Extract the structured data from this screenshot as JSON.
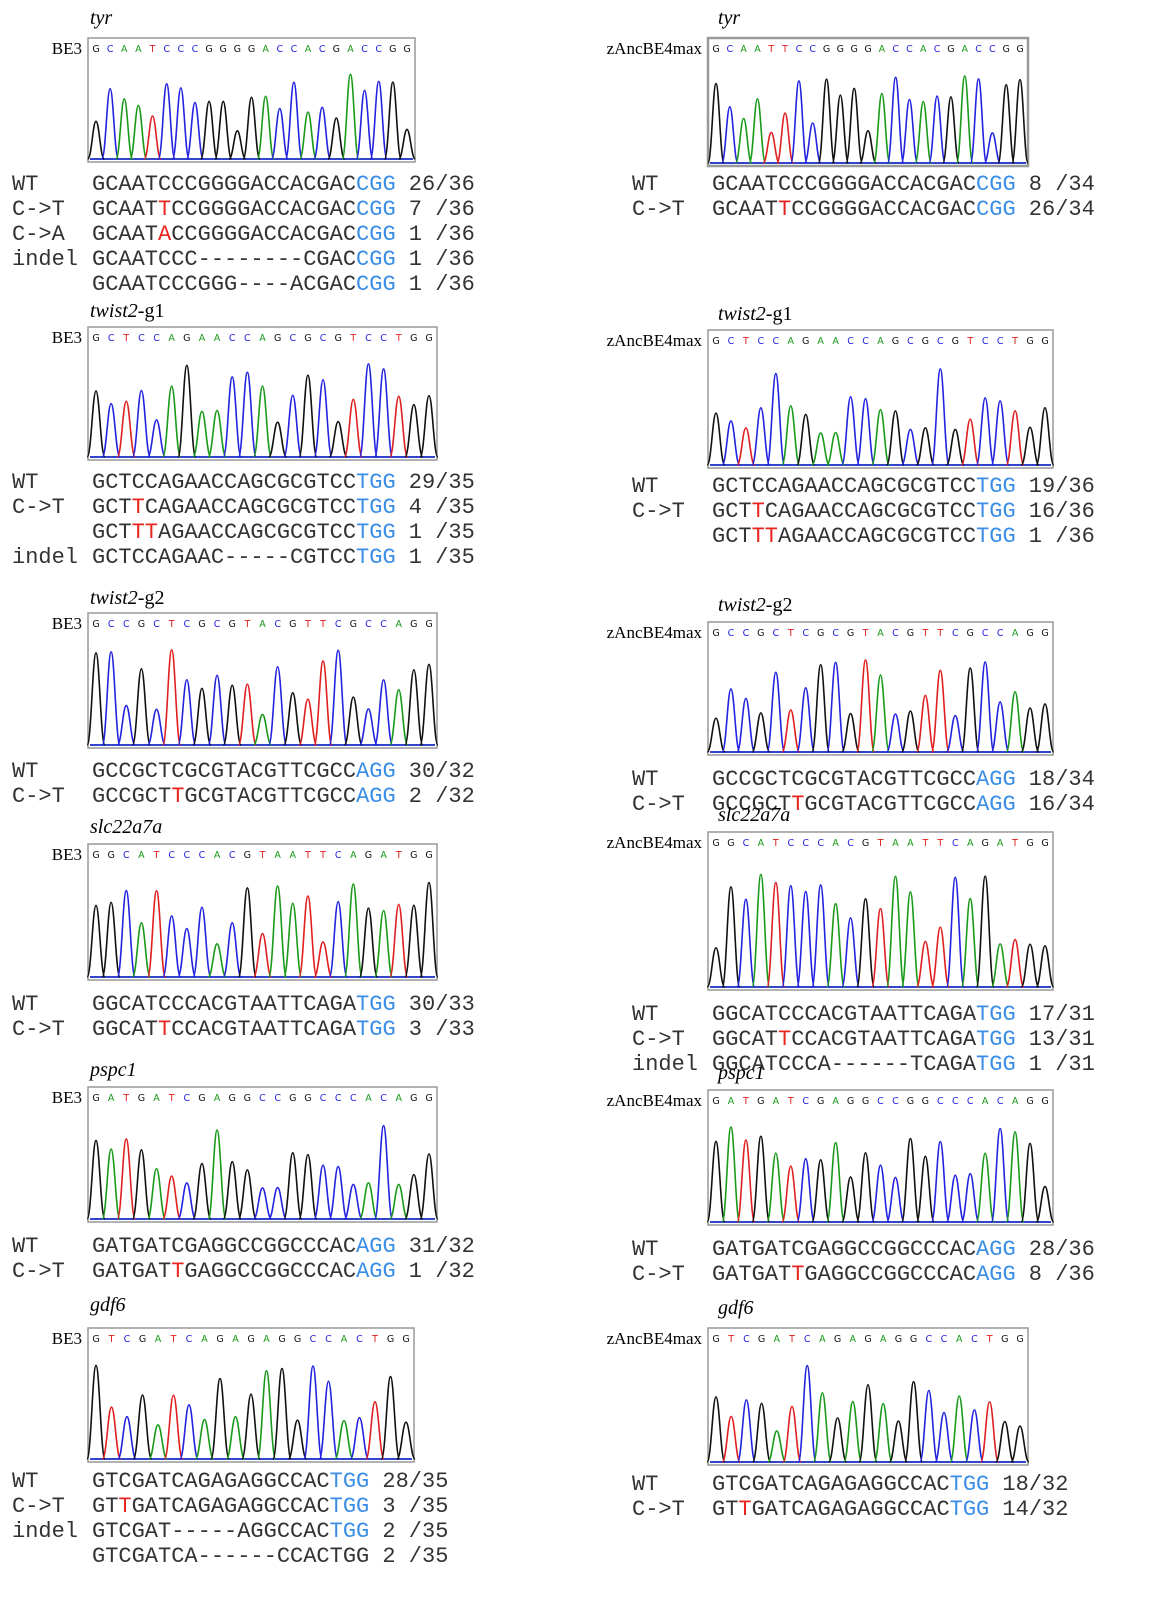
{
  "columns": [
    {
      "panels": [
        {
          "title": {
            "italic": "tyr"
          },
          "enzyme": "BE3",
          "trace": "GCAATCCCGGGGACCACGACCGG",
          "alleles": [
            {
              "label": "WT",
              "seq": [
                {
                  "text": "GCAATCCCGGGGACCACGAC"
                },
                {
                  "text": "CGG",
                  "color": "#3a8ee6"
                }
              ],
              "count": "26/36"
            },
            {
              "label": "C->T",
              "seq": [
                {
                  "text": "GCAAT"
                },
                {
                  "text": "T",
                  "color": "#e8251f"
                },
                {
                  "text": "CCGGGGACCACGAC"
                },
                {
                  "text": "CGG",
                  "color": "#3a8ee6"
                }
              ],
              "count": "7 /36"
            },
            {
              "label": "C->A",
              "seq": [
                {
                  "text": "GCAAT"
                },
                {
                  "text": "A",
                  "color": "#e8251f"
                },
                {
                  "text": "CCGGGGACCACGAC"
                },
                {
                  "text": "CGG",
                  "color": "#3a8ee6"
                }
              ],
              "count": "1 /36"
            },
            {
              "label": "indel",
              "seq": [
                {
                  "text": "GCAATCCC--------CGAC"
                },
                {
                  "text": "CGG",
                  "color": "#3a8ee6"
                }
              ],
              "count": "1 /36"
            },
            {
              "seq": [
                {
                  "text": "GCAATCCCGGG----ACGAC"
                },
                {
                  "text": "CGG",
                  "color": "#3a8ee6"
                }
              ],
              "count": "1 /36"
            }
          ]
        },
        {
          "title": {
            "italic": "twist2",
            "plain": "-g1"
          },
          "enzyme": "BE3",
          "trace": "GCTCCAGAACCAGCGCGTCCTGG",
          "alleles": [
            {
              "label": "WT",
              "seq": [
                {
                  "text": "GCTCCAGAACCAGCGCGTCC"
                },
                {
                  "text": "TGG",
                  "color": "#3a8ee6"
                }
              ],
              "count": "29/35"
            },
            {
              "label": "C->T",
              "seq": [
                {
                  "text": "GCT"
                },
                {
                  "text": "T",
                  "color": "#e8251f"
                },
                {
                  "text": "CAGAACCAGCGCGTCC"
                },
                {
                  "text": "TGG",
                  "color": "#3a8ee6"
                }
              ],
              "count": "4 /35"
            },
            {
              "seq": [
                {
                  "text": "GCT"
                },
                {
                  "text": "TT",
                  "color": "#e8251f"
                },
                {
                  "text": "AGAACCAGCGCGTCC"
                },
                {
                  "text": "TGG",
                  "color": "#3a8ee6"
                }
              ],
              "count": "1 /35"
            },
            {
              "label": "indel",
              "seq": [
                {
                  "text": "GCTCCAGAAC-----CGTCC"
                },
                {
                  "text": "TGG",
                  "color": "#3a8ee6"
                }
              ],
              "count": "1 /35"
            }
          ]
        },
        {
          "title": {
            "italic": "twist2",
            "plain": "-g2"
          },
          "enzyme": "BE3",
          "trace": "GCCGCTCGCGTACGTTCGCCAGG",
          "alleles": [
            {
              "label": "WT",
              "seq": [
                {
                  "text": "GCCGCTCGCGTACGTTCGCC"
                },
                {
                  "text": "AGG",
                  "color": "#3a8ee6"
                }
              ],
              "count": "30/32"
            },
            {
              "label": "C->T",
              "seq": [
                {
                  "text": "GCCGCT"
                },
                {
                  "text": "T",
                  "color": "#e8251f"
                },
                {
                  "text": "GCGTACGTTCGCC"
                },
                {
                  "text": "AGG",
                  "color": "#3a8ee6"
                }
              ],
              "count": "2 /32"
            }
          ]
        },
        {
          "title": {
            "italic": "slc22a7a"
          },
          "enzyme": "BE3",
          "trace": "GGCATCCCACGTAATTCAGATGG",
          "alleles": [
            {
              "label": "WT",
              "seq": [
                {
                  "text": "GGCATCCCACGTAATTCAGA"
                },
                {
                  "text": "TGG",
                  "color": "#3a8ee6"
                }
              ],
              "count": "30/33"
            },
            {
              "label": "C->T",
              "seq": [
                {
                  "text": "GGCAT"
                },
                {
                  "text": "T",
                  "color": "#e8251f"
                },
                {
                  "text": "CCACGTAATTCAGA"
                },
                {
                  "text": "TGG",
                  "color": "#3a8ee6"
                }
              ],
              "count": "3 /33"
            }
          ]
        },
        {
          "title": {
            "italic": "pspc1"
          },
          "enzyme": "BE3",
          "trace": "GATGATCGAGGCCGGCCCACAGG",
          "alleles": [
            {
              "label": "WT",
              "seq": [
                {
                  "text": "GATGATCGAGGCCGGCCCAC"
                },
                {
                  "text": "AGG",
                  "color": "#3a8ee6"
                }
              ],
              "count": "31/32"
            },
            {
              "label": "C->T",
              "seq": [
                {
                  "text": "GATGAT"
                },
                {
                  "text": "T",
                  "color": "#e8251f"
                },
                {
                  "text": "GAGGCCGGCCCAC"
                },
                {
                  "text": "AGG",
                  "color": "#3a8ee6"
                }
              ],
              "count": "1 /32"
            }
          ]
        },
        {
          "title": {
            "italic": "gdf6"
          },
          "enzyme": "BE3",
          "trace": "GTCGATCAGAGAGGCCACTGG",
          "alleles": [
            {
              "label": "WT",
              "seq": [
                {
                  "text": "GTCGATCAGAGAGGCCAC"
                },
                {
                  "text": "TGG",
                  "color": "#3a8ee6"
                }
              ],
              "count": "28/35"
            },
            {
              "label": "C->T",
              "seq": [
                {
                  "text": "GT"
                },
                {
                  "text": "T",
                  "color": "#e8251f"
                },
                {
                  "text": "GATCAGAGAGGCCAC"
                },
                {
                  "text": "TGG",
                  "color": "#3a8ee6"
                }
              ],
              "count": "3 /35"
            },
            {
              "label": "indel",
              "seq": [
                {
                  "text": "GTCGAT-----AGGCCAC"
                },
                {
                  "text": "TGG",
                  "color": "#3a8ee6"
                }
              ],
              "count": "2 /35"
            },
            {
              "seq": [
                {
                  "text": "GTCGATCA------CCACTGG"
                }
              ],
              "count": "2 /35"
            }
          ]
        }
      ]
    },
    {
      "panels": [
        {
          "title": {
            "italic": "tyr"
          },
          "enzyme": "zAncBE4max",
          "trace": "GCAATTCCGGGGACCACGACCGG",
          "alleles": [
            {
              "label": "WT",
              "seq": [
                {
                  "text": "GCAATCCCGGGGACCACGAC"
                },
                {
                  "text": "CGG",
                  "color": "#3a8ee6"
                }
              ],
              "count": "8 /34"
            },
            {
              "label": "C->T",
              "seq": [
                {
                  "text": "GCAAT"
                },
                {
                  "text": "T",
                  "color": "#e8251f"
                },
                {
                  "text": "CCGGGGACCACGAC"
                },
                {
                  "text": "CGG",
                  "color": "#3a8ee6"
                }
              ],
              "count": "26/34"
            }
          ]
        },
        {
          "title": {
            "italic": "twist2",
            "plain": "-g1"
          },
          "enzyme": "zAncBE4max",
          "trace": "GCTCCAGAACCAGCGCGTCCTGG",
          "alleles": [
            {
              "label": "WT",
              "seq": [
                {
                  "text": "GCTCCAGAACCAGCGCGTCC"
                },
                {
                  "text": "TGG",
                  "color": "#3a8ee6"
                }
              ],
              "count": "19/36"
            },
            {
              "label": "C->T",
              "seq": [
                {
                  "text": "GCT"
                },
                {
                  "text": "T",
                  "color": "#e8251f"
                },
                {
                  "text": "CAGAACCAGCGCGTCC"
                },
                {
                  "text": "TGG",
                  "color": "#3a8ee6"
                }
              ],
              "count": "16/36"
            },
            {
              "seq": [
                {
                  "text": "GCT"
                },
                {
                  "text": "TT",
                  "color": "#e8251f"
                },
                {
                  "text": "AGAACCAGCGCGTCC"
                },
                {
                  "text": "TGG",
                  "color": "#3a8ee6"
                }
              ],
              "count": "1 /36"
            }
          ]
        },
        {
          "title": {
            "italic": "twist2",
            "plain": "-g2"
          },
          "enzyme": "zAncBE4max",
          "trace": "GCCGCTCGCGTACGTTCGCCAGG",
          "alleles": [
            {
              "label": "WT",
              "seq": [
                {
                  "text": "GCCGCTCGCGTACGTTCGCC"
                },
                {
                  "text": "AGG",
                  "color": "#3a8ee6"
                }
              ],
              "count": "18/34"
            },
            {
              "label": "C->T",
              "seq": [
                {
                  "text": "GCCGCT"
                },
                {
                  "text": "T",
                  "color": "#e8251f"
                },
                {
                  "text": "GCGTACGTTCGCC"
                },
                {
                  "text": "AGG",
                  "color": "#3a8ee6"
                }
              ],
              "count": "16/34"
            }
          ]
        },
        {
          "title": {
            "italic": "slc22a7a"
          },
          "enzyme": "zAncBE4max",
          "trace": "GGCATCCCACGTAATTCAGATGG",
          "alleles": [
            {
              "label": "WT",
              "seq": [
                {
                  "text": "GGCATCCCACGTAATTCAGA"
                },
                {
                  "text": "TGG",
                  "color": "#3a8ee6"
                }
              ],
              "count": "17/31"
            },
            {
              "label": "C->T",
              "seq": [
                {
                  "text": "GGCAT"
                },
                {
                  "text": "T",
                  "color": "#e8251f"
                },
                {
                  "text": "CCACGTAATTCAGA"
                },
                {
                  "text": "TGG",
                  "color": "#3a8ee6"
                }
              ],
              "count": "13/31"
            },
            {
              "label": "indel",
              "seq": [
                {
                  "text": "GGCATCCCA------TCAGA"
                },
                {
                  "text": "TGG",
                  "color": "#3a8ee6"
                }
              ],
              "count": "1 /31"
            }
          ]
        },
        {
          "title": {
            "italic": "pspc1"
          },
          "enzyme": "zAncBE4max",
          "trace": "GATGATCGAGGCCGGCCCACAGG",
          "alleles": [
            {
              "label": "WT",
              "seq": [
                {
                  "text": "GATGATCGAGGCCGGCCCAC"
                },
                {
                  "text": "AGG",
                  "color": "#3a8ee6"
                }
              ],
              "count": "28/36"
            },
            {
              "label": "C->T",
              "seq": [
                {
                  "text": "GATGAT"
                },
                {
                  "text": "T",
                  "color": "#e8251f"
                },
                {
                  "text": "GAGGCCGGCCCAC"
                },
                {
                  "text": "AGG",
                  "color": "#3a8ee6"
                }
              ],
              "count": "8 /36"
            }
          ]
        },
        {
          "title": {
            "italic": "gdf6"
          },
          "enzyme": "zAncBE4max",
          "trace": "GTCGATCAGAGAGGCCACTGG",
          "alleles": [
            {
              "label": "WT",
              "seq": [
                {
                  "text": "GTCGATCAGAGAGGCCAC"
                },
                {
                  "text": "TGG",
                  "color": "#3a8ee6"
                }
              ],
              "count": "18/32"
            },
            {
              "label": "C->T",
              "seq": [
                {
                  "text": "GT"
                },
                {
                  "text": "T",
                  "color": "#e8251f"
                },
                {
                  "text": "GATCAGAGAGGCCAC"
                },
                {
                  "text": "TGG",
                  "color": "#3a8ee6"
                }
              ],
              "count": "14/32"
            }
          ]
        }
      ]
    }
  ]
}
